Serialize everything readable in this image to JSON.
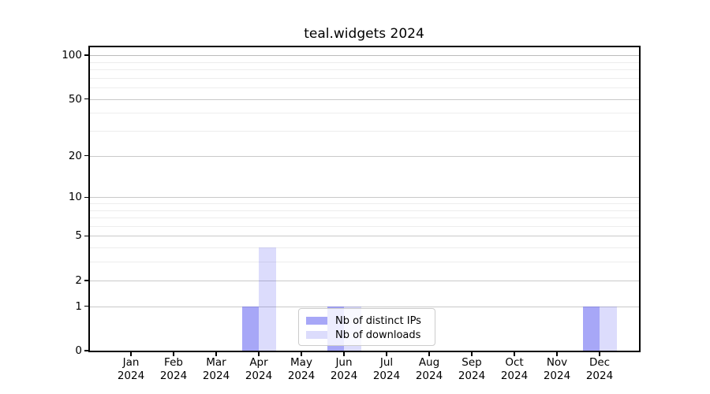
{
  "chart_data": {
    "type": "bar",
    "title": "teal.widgets 2024",
    "categories": [
      "Jan",
      "Feb",
      "Mar",
      "Apr",
      "May",
      "Jun",
      "Jul",
      "Aug",
      "Sep",
      "Oct",
      "Nov",
      "Dec"
    ],
    "xtick_year_line": "2024",
    "series": [
      {
        "name": "Nb of distinct IPs",
        "color": "rgba(80,80,240,0.5)",
        "values": [
          0,
          0,
          0,
          1,
          0,
          1,
          0,
          0,
          0,
          0,
          0,
          1
        ]
      },
      {
        "name": "Nb of downloads",
        "color": "rgba(80,80,240,0.2)",
        "values": [
          0,
          0,
          0,
          4,
          0,
          1,
          0,
          0,
          0,
          0,
          0,
          1
        ]
      }
    ],
    "yscale": "log1p",
    "ylim": [
      0,
      116
    ],
    "yticks": [
      0,
      1,
      2,
      5,
      10,
      20,
      50,
      100
    ],
    "yticks_minor": [
      3,
      4,
      6,
      7,
      8,
      9,
      30,
      40,
      60,
      70,
      80,
      90
    ],
    "grid": true,
    "legend_position": "inside-bottom-center",
    "colors": {
      "grid_major": "#c9c9c9",
      "grid_top": "#bcbcbc",
      "grid_minor": "#ededed",
      "spine": "#000000",
      "background": "#ffffff"
    }
  }
}
